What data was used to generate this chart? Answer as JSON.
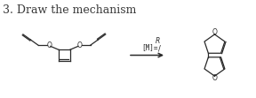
{
  "title": "3. Draw the mechanism",
  "title_fontsize": 9,
  "title_color": "#3a3a3a",
  "background_color": "#ffffff",
  "arrow_label": "[M]=",
  "arrow_label_r": "R",
  "figsize": [
    2.88,
    1.11
  ],
  "dpi": 100
}
